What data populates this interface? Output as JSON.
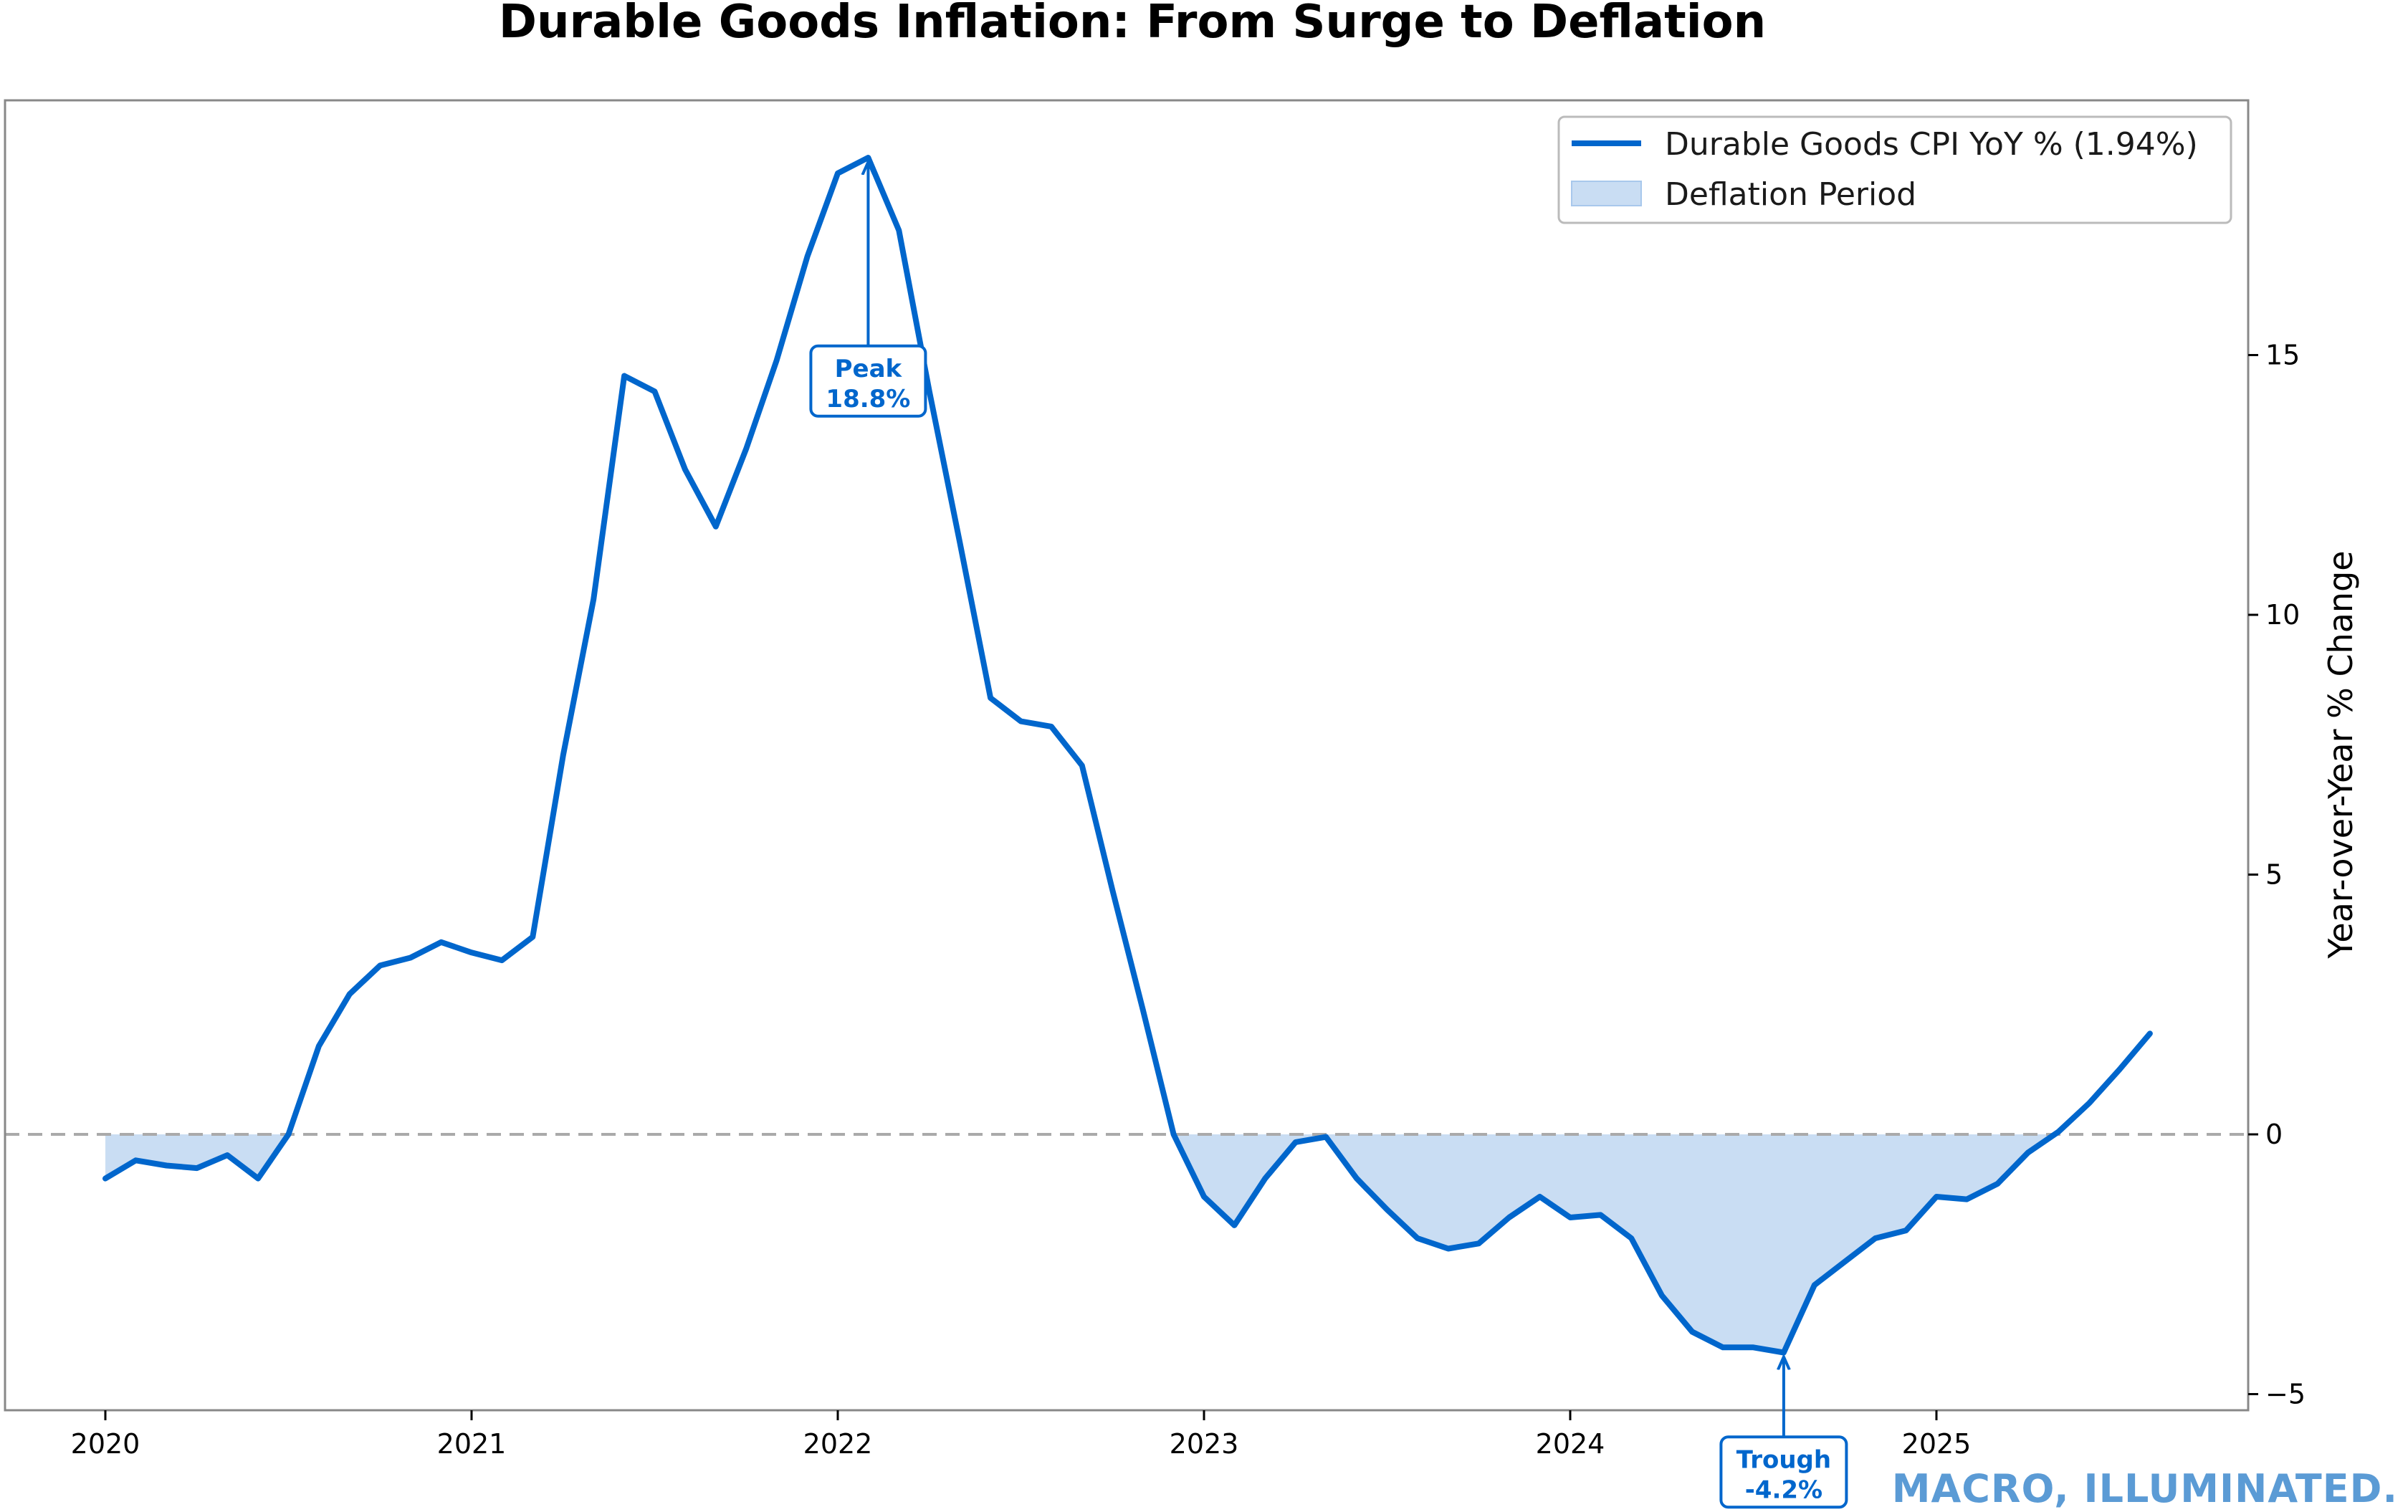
{
  "chart_data": {
    "type": "line",
    "title": "Durable Goods Inflation: From Surge to Deflation",
    "xlabel": "",
    "ylabel": "Year-over-Year % Change",
    "y_axis_side": "right",
    "xlim": [
      2019.73,
      2025.85
    ],
    "ylim": [
      -5.3,
      20.1
    ],
    "x_ticks": [
      2020,
      2021,
      2022,
      2023,
      2024,
      2025
    ],
    "x_tick_labels": [
      "2020",
      "2021",
      "2022",
      "2023",
      "2024",
      "2025"
    ],
    "y_ticks": [
      -5,
      0,
      5,
      10,
      15
    ],
    "y_tick_labels": [
      "−5",
      "0",
      "5",
      "10",
      "15"
    ],
    "zero_line": {
      "value": 0,
      "style": "dashed",
      "color": "#aaaaaa"
    },
    "grid": false,
    "legend": {
      "position": "top-right",
      "entries": [
        {
          "label": "Durable Goods CPI YoY % (1.94%)",
          "kind": "line",
          "color": "#0066CC"
        },
        {
          "label": "Deflation Period",
          "kind": "fill",
          "color": "#c9ddf3"
        }
      ]
    },
    "series": [
      {
        "name": "Durable Goods CPI YoY % (1.94%)",
        "color": "#0066CC",
        "fill_below_zero": true,
        "fill_color": "#c9ddf3",
        "x": [
          2020.0,
          2020.083,
          2020.167,
          2020.25,
          2020.333,
          2020.417,
          2020.5,
          2020.583,
          2020.667,
          2020.75,
          2020.833,
          2020.917,
          2021.0,
          2021.083,
          2021.167,
          2021.25,
          2021.333,
          2021.417,
          2021.5,
          2021.583,
          2021.667,
          2021.75,
          2021.833,
          2021.917,
          2022.0,
          2022.083,
          2022.167,
          2022.25,
          2022.333,
          2022.417,
          2022.5,
          2022.583,
          2022.667,
          2022.75,
          2022.833,
          2022.917,
          2023.0,
          2023.083,
          2023.167,
          2023.25,
          2023.333,
          2023.417,
          2023.5,
          2023.583,
          2023.667,
          2023.75,
          2023.833,
          2023.917,
          2024.0,
          2024.083,
          2024.167,
          2024.25,
          2024.333,
          2024.417,
          2024.5,
          2024.583,
          2024.667,
          2024.75,
          2024.833,
          2024.917,
          2025.0,
          2025.083,
          2025.167,
          2025.25,
          2025.333,
          2025.417,
          2025.5,
          2025.583
        ],
        "values": [
          -0.85,
          -0.5,
          -0.6,
          -0.65,
          -0.4,
          -0.85,
          0.0,
          1.7,
          2.7,
          3.25,
          3.4,
          3.7,
          3.5,
          3.35,
          3.8,
          7.3,
          10.3,
          14.6,
          14.3,
          12.8,
          11.7,
          13.2,
          14.9,
          16.9,
          18.5,
          18.8,
          17.4,
          14.3,
          11.4,
          8.4,
          7.95,
          7.85,
          7.1,
          4.7,
          2.4,
          0.0,
          -1.2,
          -1.75,
          -0.85,
          -0.15,
          -0.05,
          -0.85,
          -1.45,
          -2.0,
          -2.2,
          -2.1,
          -1.6,
          -1.2,
          -1.6,
          -1.55,
          -2.0,
          -3.1,
          -3.8,
          -4.1,
          -4.1,
          -4.2,
          -2.9,
          -2.45,
          -2.0,
          -1.85,
          -1.2,
          -1.25,
          -0.95,
          -0.35,
          0.05,
          0.6,
          1.25,
          1.94
        ]
      }
    ],
    "annotations": [
      {
        "label": "Peak",
        "value_label": "18.8%",
        "x": 2022.083,
        "y": 18.8,
        "text_y": 14.5
      },
      {
        "label": "Trough",
        "value_label": "-4.2%",
        "x": 2024.583,
        "y": -4.2,
        "text_y": -6.5
      }
    ]
  },
  "watermark": {
    "text": "MACRO, ILLUMINATED.",
    "color": "#5b9bd5"
  }
}
